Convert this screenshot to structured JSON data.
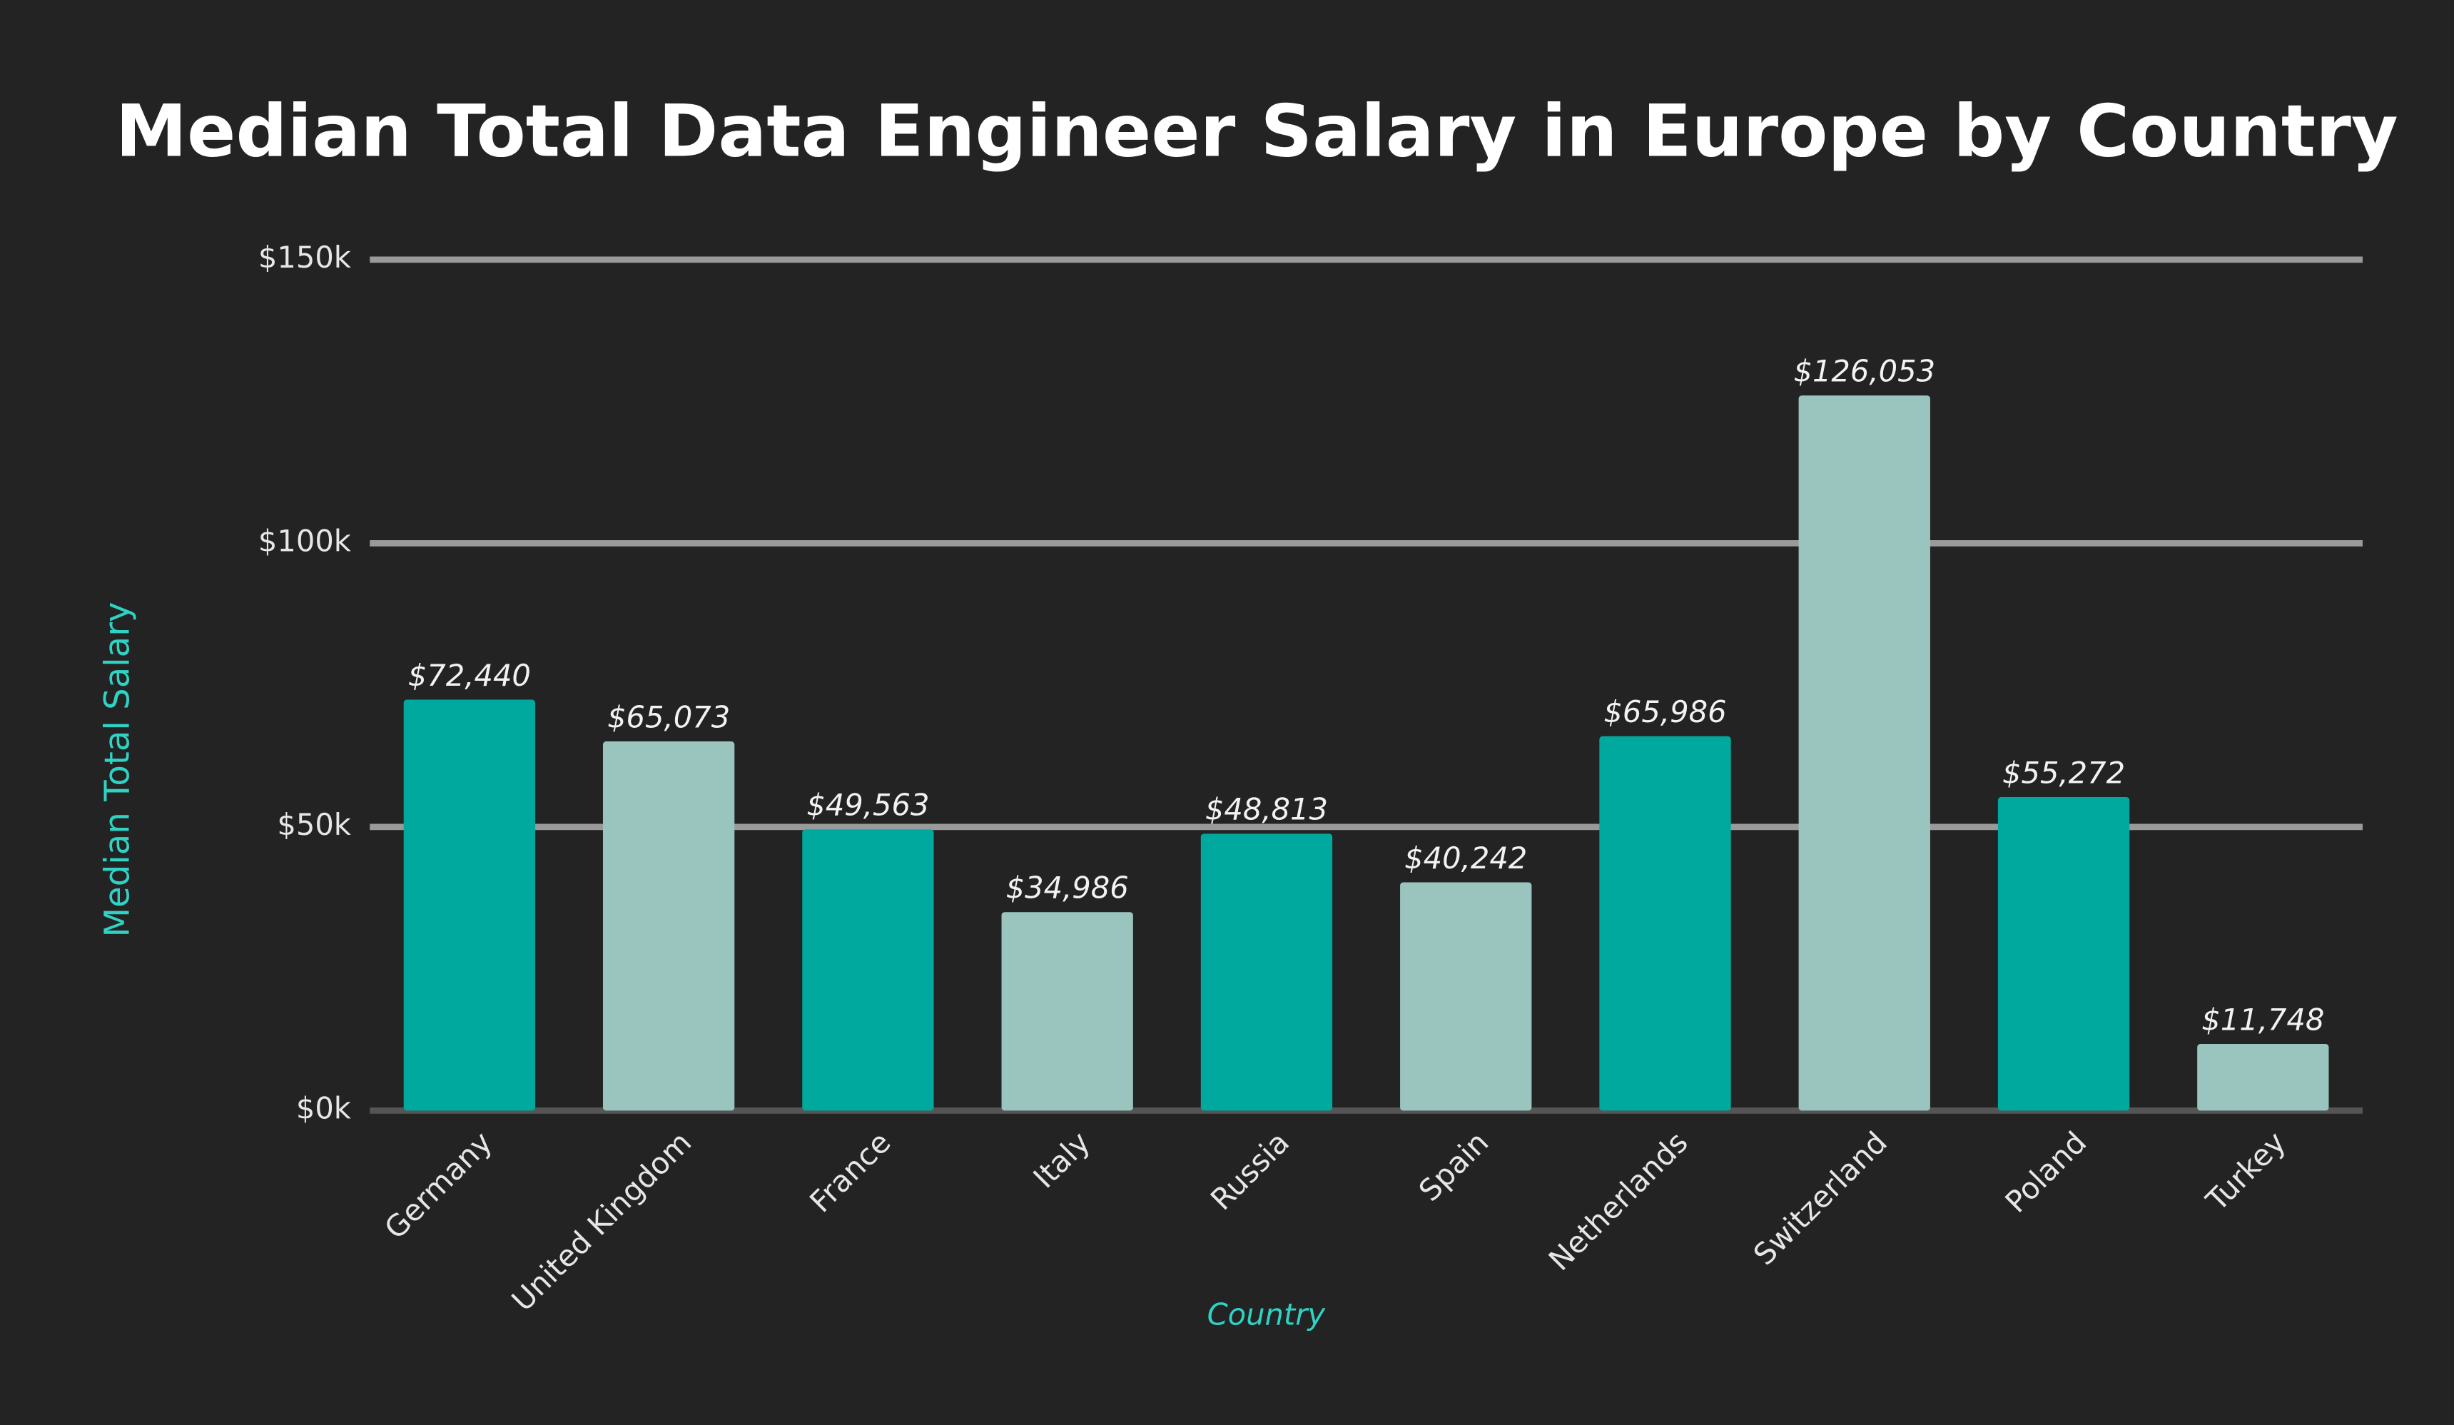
{
  "chart_data": {
    "type": "bar",
    "title": "Median Total Data Engineer Salary in Europe by Country",
    "x_label": "Country",
    "y_label": "Median Total Salary",
    "categories": [
      "Germany",
      "United Kingdom",
      "France",
      "Italy",
      "Russia",
      "Spain",
      "Netherlands",
      "Switzerland",
      "Poland",
      "Turkey"
    ],
    "values": [
      72440,
      65073,
      49563,
      34986,
      48813,
      40242,
      65986,
      126053,
      55272,
      11748
    ],
    "value_labels": [
      "$72,440",
      "$65,073",
      "$49,563",
      "$34,986",
      "$48,813",
      "$40,242",
      "$65,986",
      "$126,053",
      "$55,272",
      "$11,748"
    ],
    "colors": [
      "#00a99d",
      "#9ac5bf",
      "#00a99d",
      "#9ac5bf",
      "#00a99d",
      "#9ac5bf",
      "#00a99d",
      "#9ac5bf",
      "#00a99d",
      "#9ac5bf"
    ],
    "ylim": [
      0,
      150000
    ],
    "yticks": [
      {
        "value": 0,
        "label": "$0k"
      },
      {
        "value": 50000,
        "label": "$50k"
      },
      {
        "value": 100000,
        "label": "$100k"
      },
      {
        "value": 150000,
        "label": "$150k"
      }
    ],
    "grid": true
  }
}
